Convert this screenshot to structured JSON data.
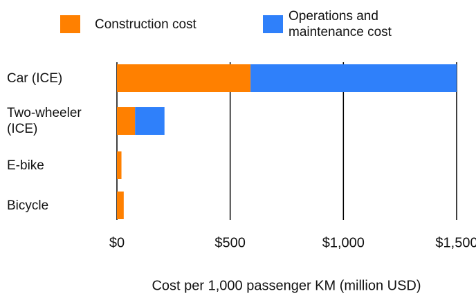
{
  "chart_data": {
    "type": "stacked-barh",
    "categories": [
      "Car (ICE)",
      "Two-wheeler (ICE)",
      "E-bike",
      "Bicycle"
    ],
    "series": [
      {
        "name": "Construction cost",
        "color": "#ff8000",
        "values": [
          590,
          80,
          20,
          30
        ]
      },
      {
        "name": "Operations and maintenance cost",
        "color": "#2f80fa",
        "values": [
          910,
          130,
          0,
          0
        ]
      }
    ],
    "xlim": [
      0,
      1500
    ],
    "xticks": [
      {
        "value": 0,
        "label": "$0"
      },
      {
        "value": 500,
        "label": "$500"
      },
      {
        "value": 1000,
        "label": "$1,000"
      },
      {
        "value": 1500,
        "label": "$1,500"
      }
    ],
    "xlabel": "Cost per 1,000 passenger KM (million USD)",
    "grid": true
  }
}
